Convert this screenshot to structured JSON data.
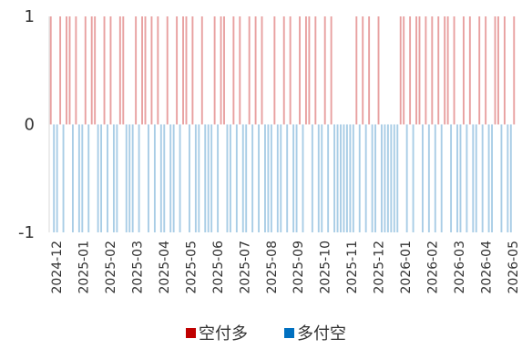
{
  "chart_data": {
    "type": "bar",
    "title": "",
    "xlabel": "",
    "ylabel": "",
    "ylim": [
      -1,
      1
    ],
    "y_ticks": [
      "1",
      "0",
      "-1"
    ],
    "x_ticks": [
      "2024-12",
      "2025-01",
      "2025-02",
      "2025-03",
      "2025-04",
      "2025-05",
      "2025-06",
      "2025-07",
      "2025-08",
      "2025-09",
      "2025-10",
      "2025-11",
      "2025-12",
      "2026-01",
      "2026-02",
      "2026-03",
      "2026-04",
      "2026-05"
    ],
    "grid": false,
    "legend_position": "bottom",
    "series": [
      {
        "name": "空付多",
        "color": "#e8a0a0",
        "values": [
          1,
          0,
          0,
          1,
          0,
          1,
          1,
          0,
          1,
          0,
          0,
          1,
          0,
          1,
          1,
          0,
          0,
          1,
          0,
          1,
          0,
          0,
          1,
          1,
          0,
          0,
          0,
          1,
          0,
          1,
          1,
          0,
          1,
          0,
          1,
          0,
          0,
          1,
          0,
          0,
          1,
          0,
          1,
          1,
          0,
          1,
          0,
          0,
          1,
          0,
          0,
          0,
          1,
          0,
          1,
          1,
          0,
          0,
          1,
          0,
          1,
          0,
          0,
          1,
          0,
          1,
          0,
          1,
          0,
          0,
          0,
          1,
          0,
          0,
          1,
          0,
          1,
          0,
          0,
          1,
          0,
          1,
          1,
          0,
          1,
          0,
          0,
          1,
          0,
          1,
          0,
          0,
          0,
          0,
          0,
          0,
          0,
          1,
          0,
          1,
          0,
          1,
          0,
          0,
          1,
          0,
          0,
          0,
          0,
          0,
          0,
          1,
          1,
          0,
          1,
          0,
          1,
          1,
          0,
          1,
          0,
          1,
          0,
          1,
          0,
          1,
          1,
          0,
          1,
          0,
          0,
          1,
          0,
          1,
          0,
          0,
          1,
          0,
          1,
          0,
          0,
          1,
          1,
          0,
          1,
          0,
          0,
          1
        ]
      },
      {
        "name": "多付空",
        "color": "#a9cde6",
        "values": [
          0,
          -1,
          -1,
          0,
          -1,
          0,
          0,
          -1,
          0,
          -1,
          -1,
          0,
          -1,
          0,
          0,
          -1,
          -1,
          0,
          -1,
          0,
          -1,
          -1,
          0,
          0,
          -1,
          -1,
          -1,
          0,
          -1,
          0,
          0,
          -1,
          0,
          -1,
          0,
          -1,
          -1,
          0,
          -1,
          -1,
          0,
          -1,
          0,
          0,
          -1,
          0,
          -1,
          -1,
          0,
          -1,
          -1,
          -1,
          0,
          -1,
          0,
          0,
          -1,
          -1,
          0,
          -1,
          0,
          -1,
          -1,
          0,
          -1,
          0,
          -1,
          0,
          -1,
          -1,
          -1,
          0,
          -1,
          -1,
          0,
          -1,
          0,
          -1,
          -1,
          0,
          -1,
          0,
          0,
          -1,
          0,
          -1,
          -1,
          0,
          -1,
          0,
          -1,
          -1,
          -1,
          -1,
          -1,
          -1,
          -1,
          0,
          -1,
          0,
          -1,
          0,
          -1,
          -1,
          0,
          -1,
          -1,
          -1,
          -1,
          -1,
          -1,
          0,
          0,
          -1,
          0,
          -1,
          0,
          0,
          -1,
          0,
          -1,
          0,
          -1,
          0,
          -1,
          0,
          0,
          -1,
          0,
          -1,
          -1,
          0,
          -1,
          0,
          -1,
          -1,
          0,
          -1,
          0,
          -1,
          -1,
          0,
          0,
          -1,
          0,
          -1,
          -1,
          0
        ]
      }
    ]
  }
}
